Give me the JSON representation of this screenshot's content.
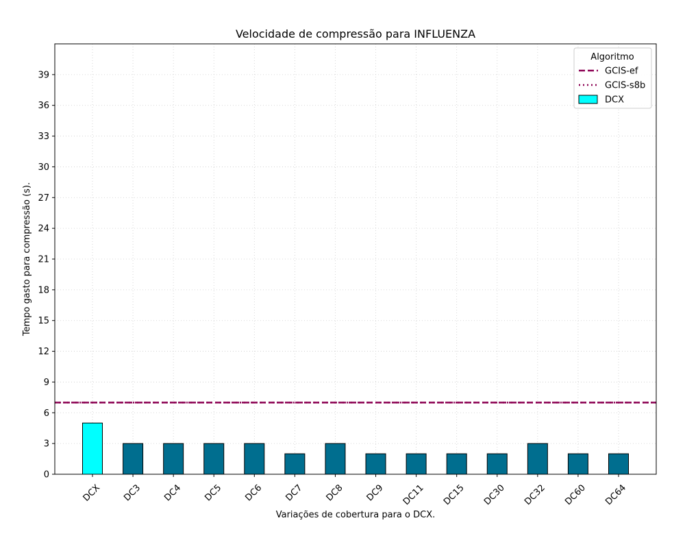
{
  "chart_data": {
    "type": "bar",
    "title": "Velocidade de compressão para  INFLUENZA",
    "xlabel": "Variações de cobertura para o DCX.",
    "ylabel": "Tempo gasto para compressão (s).",
    "categories": [
      "DCX",
      "DC3",
      "DC4",
      "DC5",
      "DC6",
      "DC7",
      "DC8",
      "DC9",
      "DC11",
      "DC15",
      "DC30",
      "DC32",
      "DC60",
      "DC64"
    ],
    "values": [
      5,
      3,
      3,
      3,
      3,
      2,
      3,
      2,
      2,
      2,
      2,
      3,
      2,
      2
    ],
    "bar_colors": [
      "#00ffff",
      "#006e8f",
      "#006e8f",
      "#006e8f",
      "#006e8f",
      "#006e8f",
      "#006e8f",
      "#006e8f",
      "#006e8f",
      "#006e8f",
      "#006e8f",
      "#006e8f",
      "#006e8f",
      "#006e8f"
    ],
    "ylim": [
      0,
      42
    ],
    "yticks": [
      0,
      3,
      6,
      9,
      12,
      15,
      18,
      21,
      24,
      27,
      30,
      33,
      36,
      39
    ],
    "grid": true,
    "reference_lines": [
      {
        "name": "GCIS-ef",
        "value": 7,
        "style": "dashed",
        "color": "#8b0052"
      },
      {
        "name": "GCIS-s8b",
        "value": 7,
        "style": "dotted",
        "color": "#8b0052"
      }
    ],
    "legend": {
      "title": "Algoritmo",
      "placement": "top-right",
      "entries": [
        {
          "label": "GCIS-ef",
          "kind": "line-dashed",
          "color": "#8b0052"
        },
        {
          "label": "GCIS-s8b",
          "kind": "line-dotted",
          "color": "#8b0052"
        },
        {
          "label": "DCX",
          "kind": "patch",
          "color": "#00ffff"
        }
      ]
    }
  }
}
